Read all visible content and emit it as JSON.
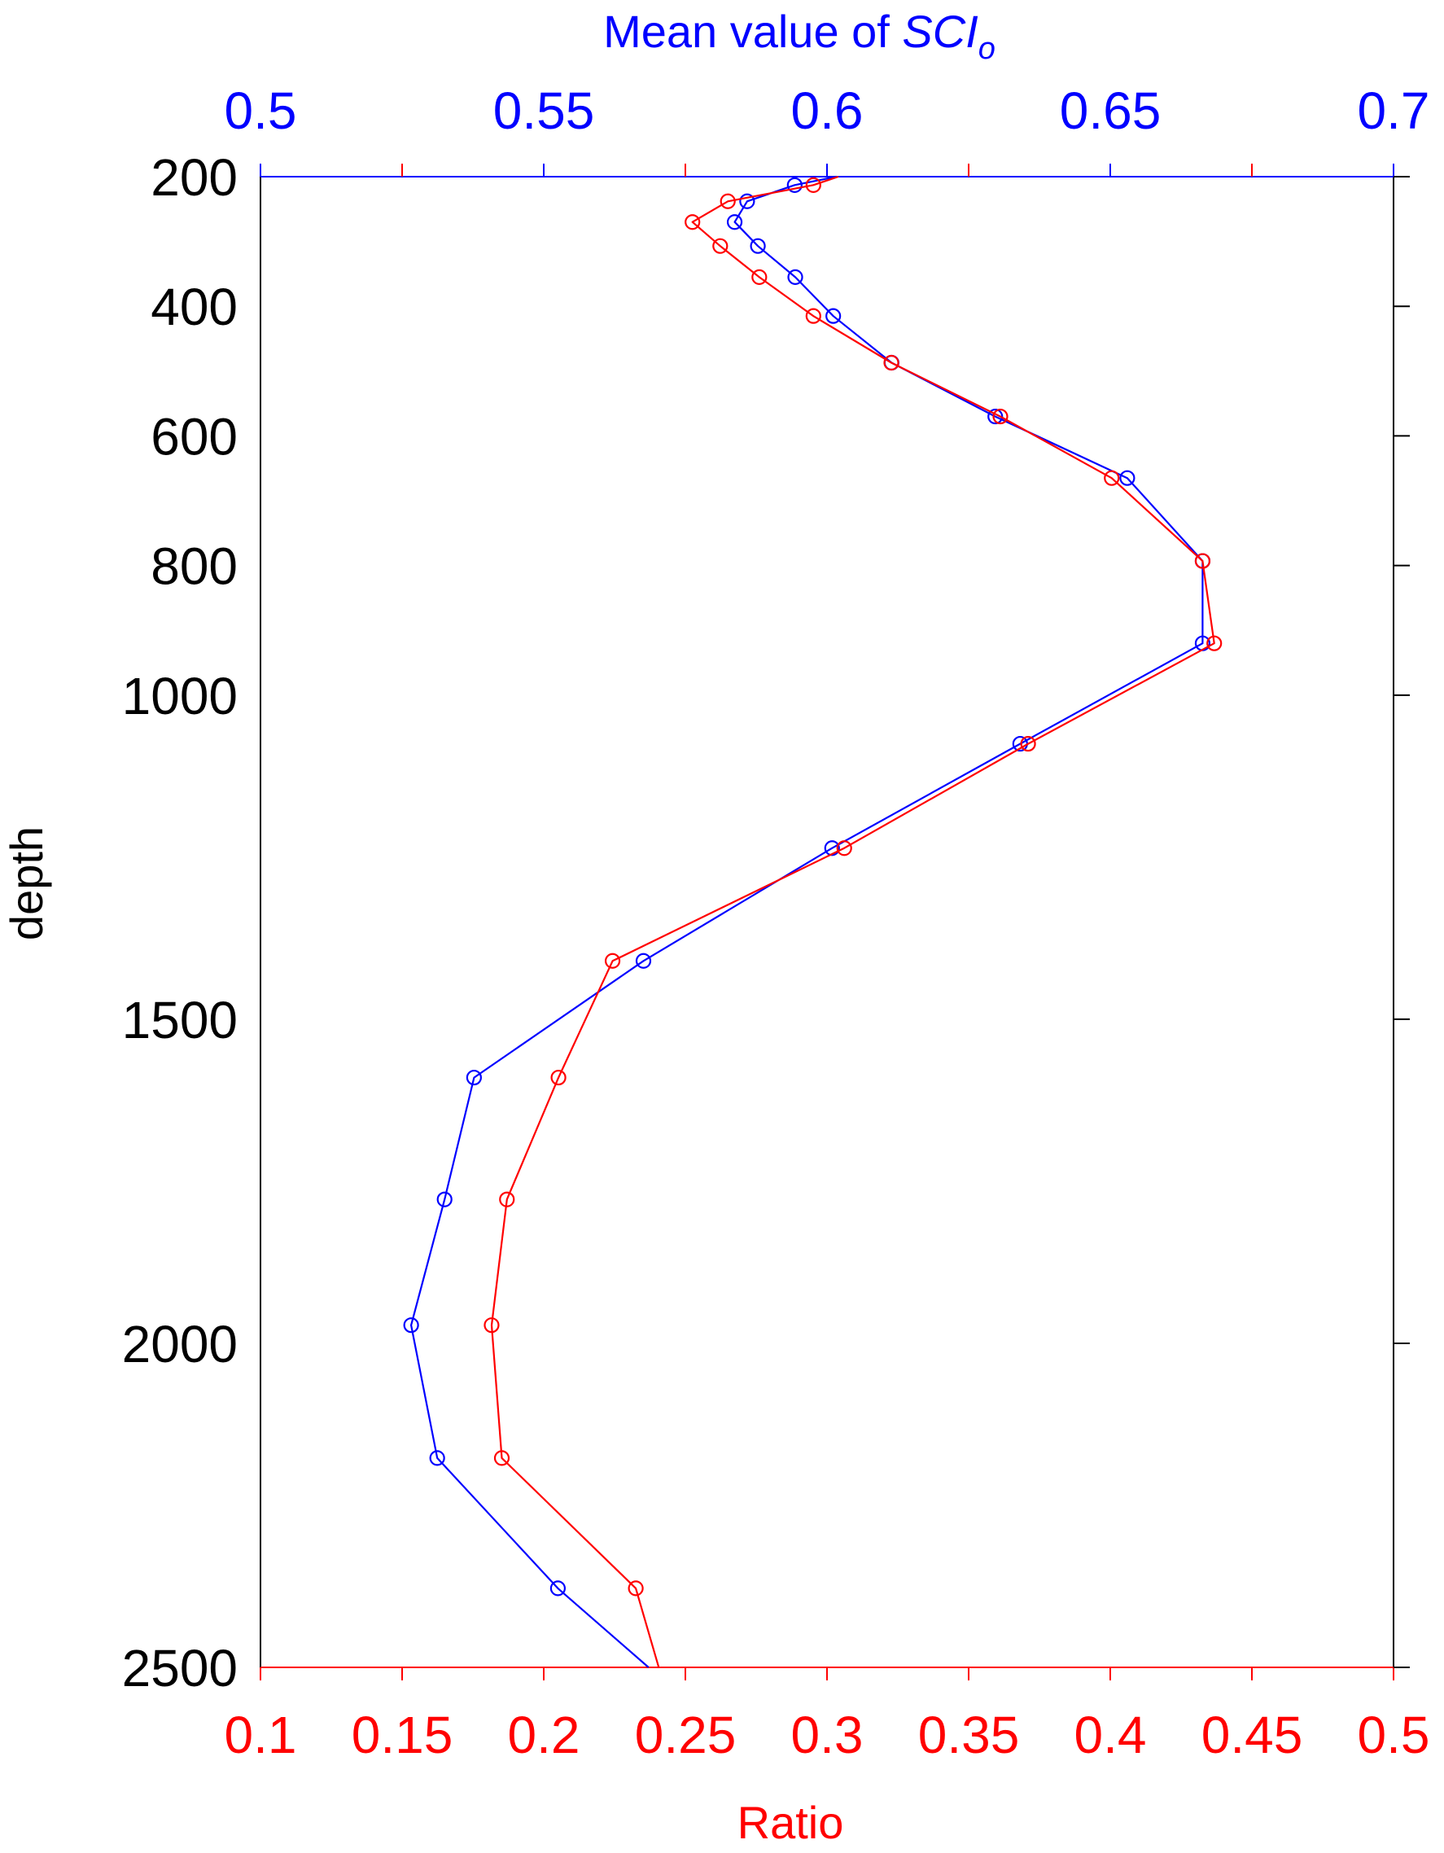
{
  "chart_data": {
    "type": "line",
    "top_axis": {
      "label_prefix": "Mean value of ",
      "label_symbol": "SCI",
      "label_subscript": "o",
      "range": [
        0.5,
        0.7
      ],
      "ticks": [
        0.5,
        0.55,
        0.6,
        0.65,
        0.7
      ],
      "tick_labels": [
        "0.5",
        "0.55",
        "0.6",
        "0.65",
        "0.7"
      ],
      "color": "#0000ff"
    },
    "bottom_axis": {
      "label": "Ratio",
      "range": [
        0.1,
        0.5
      ],
      "ticks": [
        0.1,
        0.15,
        0.2,
        0.25,
        0.3,
        0.35,
        0.4,
        0.45,
        0.5
      ],
      "tick_labels": [
        "0.1",
        "0.15",
        "0.2",
        "0.25",
        "0.3",
        "0.35",
        "0.4",
        "0.45",
        "0.5"
      ],
      "color": "#ff0000"
    },
    "y_axis": {
      "label": "depth",
      "range": [
        200,
        2500
      ],
      "reversed": true,
      "ticks": [
        200,
        400,
        600,
        800,
        1000,
        1500,
        2000,
        2500
      ],
      "tick_labels": [
        "200",
        "400",
        "600",
        "800",
        "1000",
        "1500",
        "2000",
        "2500"
      ]
    },
    "series": [
      {
        "axis": "top",
        "color": "#0000ff",
        "marker": "circle",
        "start": {
          "x": 0.6017,
          "y": 200
        },
        "end": {
          "x": 0.5685,
          "y": 2500
        },
        "points": [
          {
            "x": 0.5943,
            "y": 213
          },
          {
            "x": 0.5859,
            "y": 238
          },
          {
            "x": 0.5837,
            "y": 270
          },
          {
            "x": 0.5878,
            "y": 307
          },
          {
            "x": 0.5944,
            "y": 355
          },
          {
            "x": 0.6011,
            "y": 415
          },
          {
            "x": 0.6114,
            "y": 487
          },
          {
            "x": 0.6297,
            "y": 570
          },
          {
            "x": 0.653,
            "y": 665
          },
          {
            "x": 0.6663,
            "y": 793
          },
          {
            "x": 0.6663,
            "y": 920
          },
          {
            "x": 0.6341,
            "y": 1075
          },
          {
            "x": 0.6009,
            "y": 1236
          },
          {
            "x": 0.5676,
            "y": 1410
          },
          {
            "x": 0.5377,
            "y": 1590
          },
          {
            "x": 0.5325,
            "y": 1778
          },
          {
            "x": 0.5266,
            "y": 1972
          },
          {
            "x": 0.5312,
            "y": 2177
          },
          {
            "x": 0.5525,
            "y": 2378
          }
        ]
      },
      {
        "axis": "bottom",
        "color": "#ff0000",
        "marker": "circle",
        "start": {
          "x": 0.304,
          "y": 200
        },
        "end": {
          "x": 0.2406,
          "y": 2500
        },
        "points": [
          {
            "x": 0.2952,
            "y": 213
          },
          {
            "x": 0.265,
            "y": 238
          },
          {
            "x": 0.2525,
            "y": 270
          },
          {
            "x": 0.2623,
            "y": 307
          },
          {
            "x": 0.2761,
            "y": 355
          },
          {
            "x": 0.2952,
            "y": 415
          },
          {
            "x": 0.3227,
            "y": 487
          },
          {
            "x": 0.3612,
            "y": 570
          },
          {
            "x": 0.4005,
            "y": 665
          },
          {
            "x": 0.4326,
            "y": 793
          },
          {
            "x": 0.4367,
            "y": 920
          },
          {
            "x": 0.371,
            "y": 1075
          },
          {
            "x": 0.3061,
            "y": 1236
          },
          {
            "x": 0.2243,
            "y": 1410
          },
          {
            "x": 0.2052,
            "y": 1590
          },
          {
            "x": 0.187,
            "y": 1778
          },
          {
            "x": 0.1816,
            "y": 1972
          },
          {
            "x": 0.1852,
            "y": 2177
          },
          {
            "x": 0.2325,
            "y": 2378
          }
        ]
      }
    ]
  }
}
